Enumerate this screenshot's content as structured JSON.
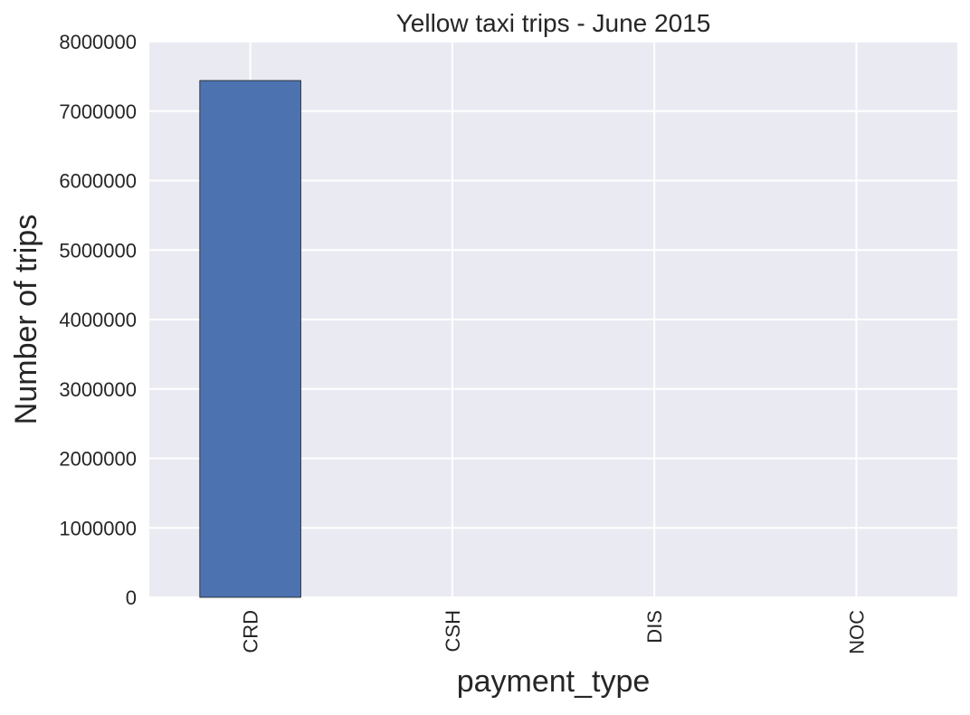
{
  "chart_data": {
    "type": "bar",
    "title": "Yellow taxi trips - June 2015",
    "xlabel": "payment_type",
    "ylabel": "Number of trips",
    "categories": [
      "CRD",
      "CSH",
      "DIS",
      "NOC"
    ],
    "series": [
      {
        "values": [
          7440000,
          0,
          0,
          0
        ]
      }
    ],
    "ylim": [
      0,
      8000000
    ],
    "yticks": [
      0,
      1000000,
      2000000,
      3000000,
      4000000,
      5000000,
      6000000,
      7000000,
      8000000
    ],
    "ytick_labels": [
      "0",
      "1000000",
      "2000000",
      "3000000",
      "4000000",
      "5000000",
      "6000000",
      "7000000",
      "8000000"
    ],
    "grid": true,
    "legend": "none",
    "colors": {
      "bar": "#4c72b0",
      "bar_edge": "#1a1a1a",
      "plot_background": "#eaeaf2",
      "grid": "#ffffff",
      "text": "#262626"
    }
  }
}
